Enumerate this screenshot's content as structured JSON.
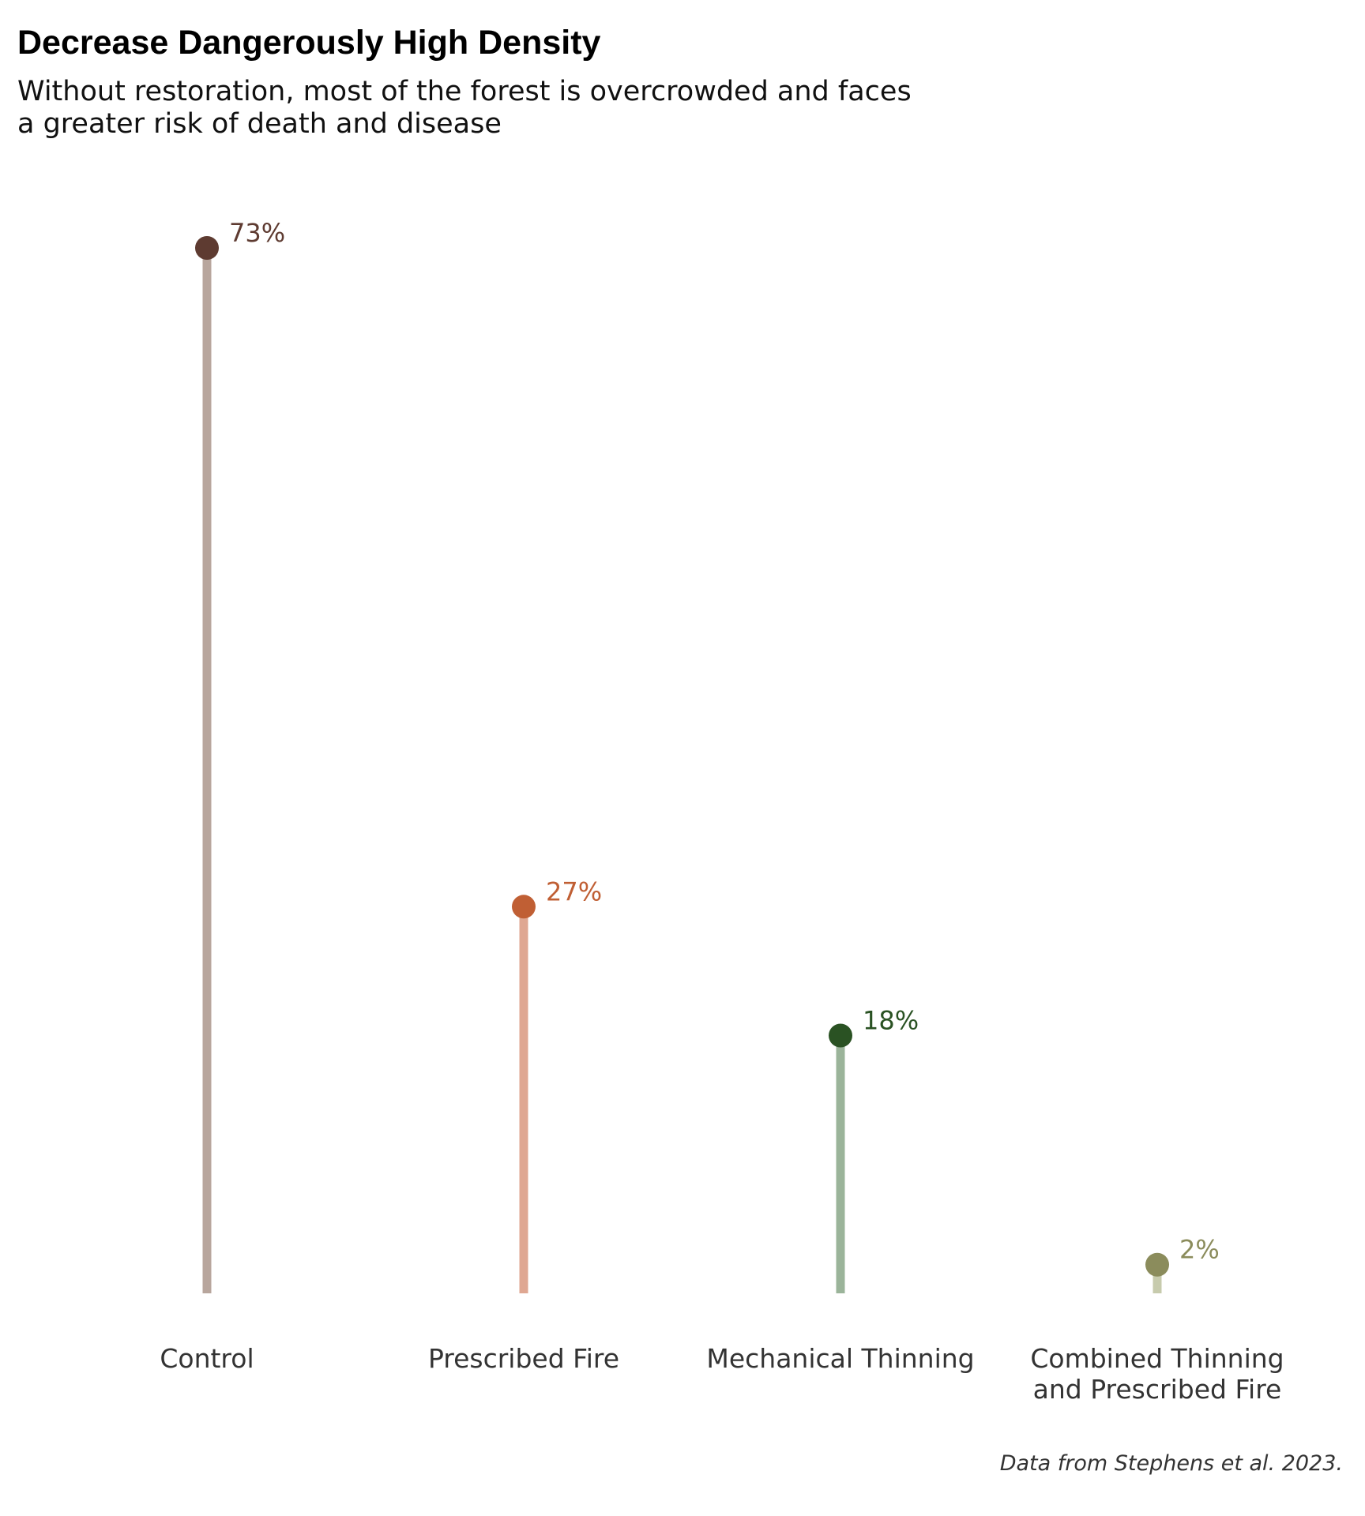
{
  "chart_data": {
    "type": "lollipop",
    "title": "Decrease Dangerously High Density",
    "subtitle": [
      "Without restoration, most of the forest is overcrowded and faces",
      "a greater risk of death and disease"
    ],
    "categories": [
      [
        "Control"
      ],
      [
        "Prescribed Fire"
      ],
      [
        "Mechanical Thinning"
      ],
      [
        "Combined Thinning",
        "and Prescribed Fire"
      ]
    ],
    "values": [
      73,
      27,
      18,
      2
    ],
    "value_labels": [
      "73%",
      "27%",
      "18%",
      "2%"
    ],
    "unit": "%",
    "ylim": [
      0,
      73
    ],
    "grid": false,
    "legend": "none",
    "colors": {
      "dots": [
        "#5e3b31",
        "#c05f34",
        "#2a5223",
        "#8b8c5c"
      ],
      "stems": [
        "#b8a69d",
        "#dfa792",
        "#9bb49a",
        "#c7cbad"
      ],
      "labels": [
        "#5e3b31",
        "#c05f34",
        "#2a5223",
        "#8b8c5c"
      ],
      "axis_text": "#333333"
    },
    "caption": "Data from Stephens et al. 2023."
  }
}
